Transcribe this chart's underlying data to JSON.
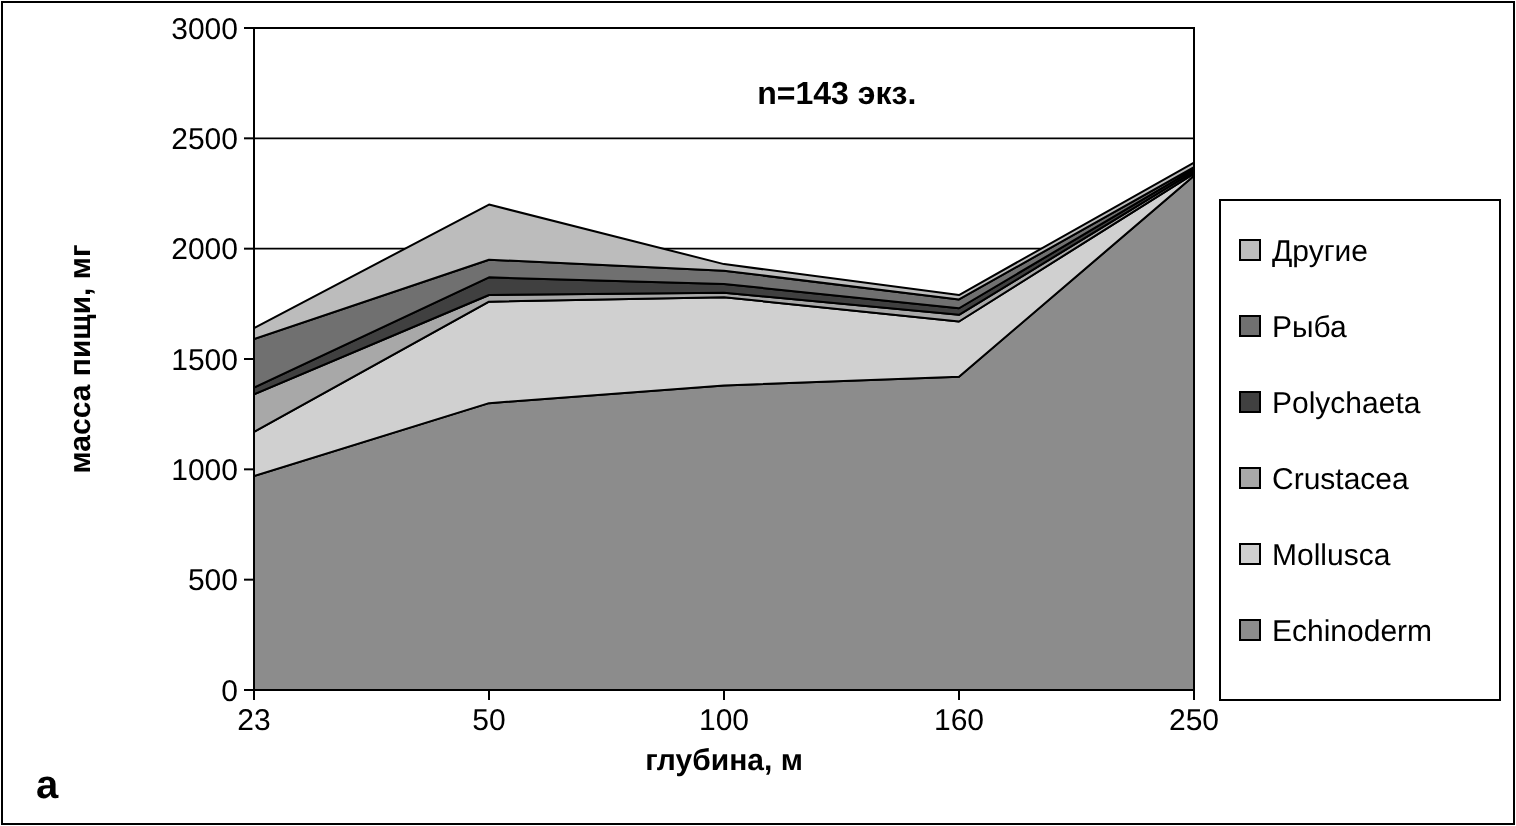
{
  "chart_data": {
    "type": "area",
    "stacked": true,
    "xlabel": "глубина, м",
    "ylabel": "масса пищи, мг",
    "categories": [
      "23",
      "50",
      "100",
      "160",
      "250"
    ],
    "ylim": [
      0,
      3000
    ],
    "yticks": [
      0,
      500,
      1000,
      1500,
      2000,
      2500,
      3000
    ],
    "grid": "y",
    "legend": "right",
    "annotations": [
      "n=143 экз.",
      "а"
    ],
    "series": [
      {
        "name": "Echinoderm",
        "color": "#8c8c8c",
        "values": [
          970,
          1300,
          1380,
          1420,
          2330
        ]
      },
      {
        "name": "Mollusca",
        "color": "#d0d0d0",
        "values": [
          200,
          460,
          400,
          250,
          10
        ]
      },
      {
        "name": "Crustacea",
        "color": "#a8a8a8",
        "values": [
          170,
          30,
          20,
          30,
          10
        ]
      },
      {
        "name": "Polychaeta",
        "color": "#404040",
        "values": [
          30,
          80,
          40,
          30,
          10
        ]
      },
      {
        "name": "Рыба",
        "color": "#707070",
        "values": [
          220,
          80,
          60,
          40,
          10
        ]
      },
      {
        "name": "Другие",
        "color": "#bcbcbc",
        "values": [
          50,
          250,
          30,
          20,
          20
        ]
      }
    ]
  }
}
